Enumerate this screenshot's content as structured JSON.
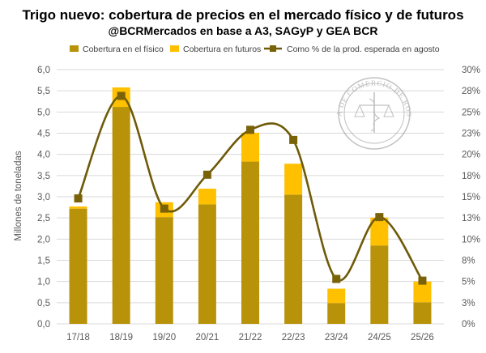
{
  "chart_data": {
    "type": "bar",
    "title": "Trigo nuevo: cobertura de precios en el mercado físico y de futuros",
    "subtitle": "@BCRMercados en base a A3, SAGyP y GEA BCR",
    "ylabel": "Millones de toneladas",
    "categories": [
      "17/18",
      "18/19",
      "19/20",
      "20/21",
      "21/22",
      "22/23",
      "23/24",
      "24/25",
      "25/26"
    ],
    "series": [
      {
        "name": "Cobertura en el físico",
        "kind": "bar-stacked",
        "values": [
          2.72,
          5.12,
          2.52,
          2.82,
          3.83,
          3.05,
          0.49,
          1.85,
          0.51
        ]
      },
      {
        "name": "Cobertura en futuros",
        "kind": "bar-stacked",
        "values": [
          0.05,
          0.46,
          0.35,
          0.37,
          0.68,
          0.73,
          0.34,
          0.66,
          0.49
        ]
      },
      {
        "name": "Como % de la prod. esperada en agosto",
        "kind": "line-secondary",
        "values": [
          14.8,
          26.9,
          13.6,
          17.6,
          22.9,
          21.7,
          5.3,
          12.6,
          5.1
        ]
      }
    ],
    "ylim": [
      0,
      6
    ],
    "y_ticks": [
      "0,0",
      "0,5",
      "1,0",
      "1,5",
      "2,0",
      "2,5",
      "3,0",
      "3,5",
      "4,0",
      "4,5",
      "5,0",
      "5,5",
      "6,0"
    ],
    "y2lim": [
      0,
      30
    ],
    "y2_ticks": [
      "0%",
      "3%",
      "5%",
      "8%",
      "10%",
      "13%",
      "15%",
      "18%",
      "20%",
      "23%",
      "25%",
      "28%",
      "30%"
    ],
    "grid": true,
    "legend_position": "top",
    "colors": {
      "fisico": "#B8930A",
      "futuros": "#FFC000",
      "line": "#6E5A08",
      "marker": "#7A6209",
      "grid": "#D9D9D9",
      "axis_text": "#595959"
    }
  },
  "watermark": {
    "text": "BOLSA DE COMERCIO DE ROSARIO"
  }
}
